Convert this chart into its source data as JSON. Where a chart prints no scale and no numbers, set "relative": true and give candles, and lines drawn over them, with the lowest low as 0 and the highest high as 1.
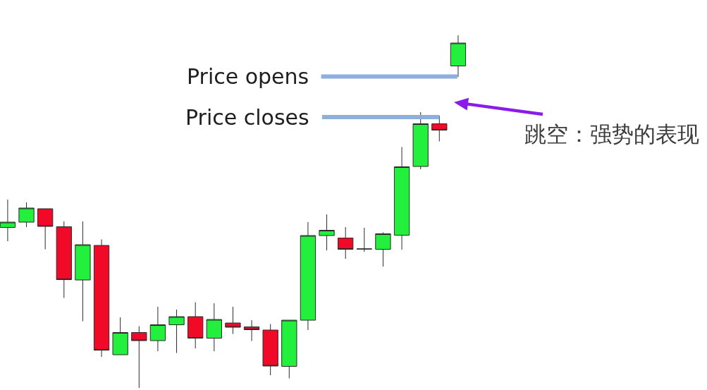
{
  "chart_data": {
    "type": "candlestick",
    "relative": true,
    "categories": [
      null,
      null,
      null,
      null,
      null,
      null,
      null,
      null,
      null,
      null,
      null,
      null,
      null,
      null,
      null,
      null,
      null,
      null,
      null,
      null,
      null,
      null,
      null,
      null,
      null
    ],
    "ohlc": [
      [
        0.455,
        0.534,
        0.416,
        0.47
      ],
      [
        0.47,
        0.526,
        0.456,
        0.51
      ],
      [
        0.508,
        0.508,
        0.393,
        0.458
      ],
      [
        0.457,
        0.472,
        0.255,
        0.307
      ],
      [
        0.306,
        0.472,
        0.189,
        0.406
      ],
      [
        0.404,
        0.421,
        0.088,
        0.107
      ],
      [
        0.094,
        0.2,
        0.094,
        0.157
      ],
      [
        0.157,
        0.175,
        0.0,
        0.134
      ],
      [
        0.134,
        0.23,
        0.104,
        0.179
      ],
      [
        0.179,
        0.222,
        0.099,
        0.202
      ],
      [
        0.202,
        0.243,
        0.112,
        0.141
      ],
      [
        0.141,
        0.24,
        0.104,
        0.194
      ],
      [
        0.184,
        0.23,
        0.153,
        0.172
      ],
      [
        0.173,
        0.192,
        0.133,
        0.165
      ],
      [
        0.164,
        0.181,
        0.036,
        0.062
      ],
      [
        0.061,
        0.192,
        0.027,
        0.192
      ],
      [
        0.192,
        0.47,
        0.164,
        0.432
      ],
      [
        0.432,
        0.492,
        0.39,
        0.447
      ],
      [
        0.425,
        0.456,
        0.366,
        0.393
      ],
      [
        0.394,
        0.454,
        0.386,
        0.394
      ],
      [
        0.393,
        0.441,
        0.344,
        0.437
      ],
      [
        0.433,
        0.683,
        0.392,
        0.627
      ],
      [
        0.628,
        0.782,
        0.62,
        0.749
      ],
      [
        0.749,
        0.772,
        0.699,
        0.731
      ],
      [
        0.913,
        1.0,
        0.882,
        0.978
      ]
    ],
    "colors": [
      "#22f03c",
      "#22f03c",
      "#f00a28",
      "#f00a28",
      "#22f03c",
      "#f00a28",
      "#22f03c",
      "#f00a28",
      "#22f03c",
      "#22f03c",
      "#f00a28",
      "#22f03c",
      "#f00a28",
      "#f00a28",
      "#f00a28",
      "#22f03c",
      "#22f03c",
      "#22f03c",
      "#f00a28",
      "#2b2b2b",
      "#22f03c",
      "#22f03c",
      "#22f03c",
      "#f00a28",
      "#22f03c"
    ],
    "ref_lines": [
      {
        "axis": "y",
        "value": 0.883,
        "label": "Price opens",
        "color": "#8eaedc"
      },
      {
        "axis": "y",
        "value": 0.768,
        "label": "Price closes",
        "color": "#8eaedc"
      }
    ],
    "annotations": [
      "跳空：强势的表现"
    ]
  }
}
